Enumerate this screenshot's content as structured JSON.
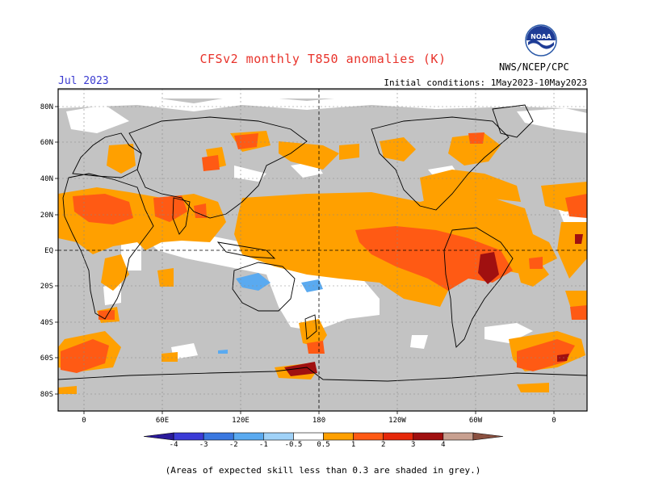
{
  "title": "CFSv2 monthly T850 anomalies (K)",
  "period": "Jul 2023",
  "initial_conditions": "Initial conditions: 1May2023-10May2023",
  "agency": "NWS/NCEP/CPC",
  "logo_text": "NOAA",
  "lat_labels": [
    "80N",
    "60N",
    "40N",
    "20N",
    "EQ",
    "20S",
    "40S",
    "60S",
    "80S"
  ],
  "lon_labels": [
    "0",
    "60E",
    "120E",
    "180",
    "120W",
    "60W",
    "0"
  ],
  "colorbar": {
    "labels": [
      "-4",
      "-3",
      "-2",
      "-1",
      "-0.5",
      "0.5",
      "1",
      "2",
      "3",
      "4"
    ],
    "colors": [
      "#2a1a9a",
      "#3b3bd6",
      "#3a78e0",
      "#5aaaf0",
      "#a0d2f8",
      "#ffffff",
      "#ffa000",
      "#ff5a14",
      "#e6280a",
      "#a01010",
      "#c8a090",
      "#8a5040"
    ]
  },
  "footnote": "(Areas of expected skill less than 0.3 are shaded in grey.)"
}
